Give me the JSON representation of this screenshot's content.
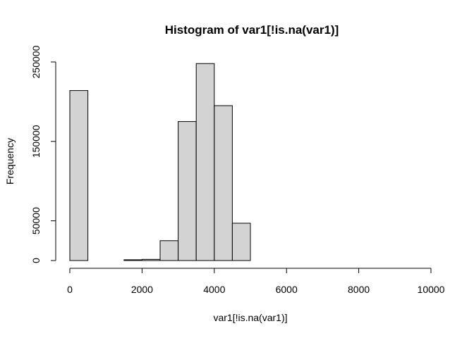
{
  "chart_data": {
    "type": "bar",
    "title": "Histogram of var1[!is.na(var1)]",
    "xlabel": "var1[!is.na(var1)]",
    "ylabel": "Frequency",
    "xlim": [
      0,
      10000
    ],
    "ylim": [
      0,
      250000
    ],
    "x_ticks": [
      0,
      2000,
      4000,
      6000,
      8000,
      10000
    ],
    "y_ticks": [
      0,
      50000,
      150000,
      250000
    ],
    "y_tick_labels": [
      "0",
      "50000",
      "150000",
      "250000"
    ],
    "x_tick_labels": [
      "0",
      "2000",
      "4000",
      "6000",
      "8000",
      "10000"
    ],
    "grid": false,
    "bins": [
      {
        "start": 0,
        "end": 500,
        "value": 214000
      },
      {
        "start": 500,
        "end": 1000,
        "value": 0
      },
      {
        "start": 1000,
        "end": 1500,
        "value": 0
      },
      {
        "start": 1500,
        "end": 2000,
        "value": 1000
      },
      {
        "start": 2000,
        "end": 2500,
        "value": 1500
      },
      {
        "start": 2500,
        "end": 3000,
        "value": 25000
      },
      {
        "start": 3000,
        "end": 3500,
        "value": 175000
      },
      {
        "start": 3500,
        "end": 4000,
        "value": 248000
      },
      {
        "start": 4000,
        "end": 4500,
        "value": 195000
      },
      {
        "start": 4500,
        "end": 5000,
        "value": 47000
      }
    ],
    "colors": {
      "bar_fill": "#d3d3d3",
      "bar_stroke": "#000000"
    }
  }
}
